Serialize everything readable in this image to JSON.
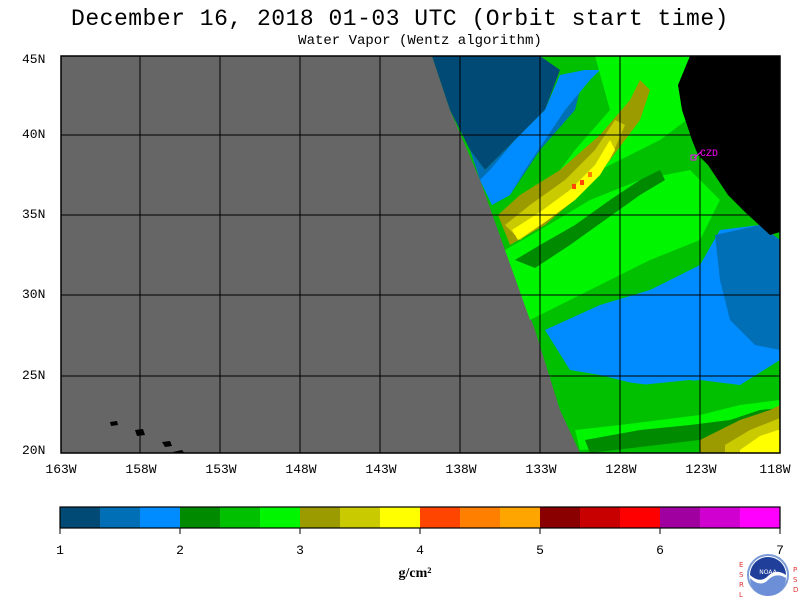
{
  "title": "December 16, 2018  01-03 UTC  (Orbit start time)",
  "subtitle": "Water Vapor (Wentz algorithm)",
  "map": {
    "lat_labels": [
      "45N",
      "40N",
      "35N",
      "30N",
      "25N",
      "20N"
    ],
    "lon_labels": [
      "163W",
      "158W",
      "153W",
      "148W",
      "143W",
      "138W",
      "133W",
      "128W",
      "123W",
      "118W"
    ],
    "station_label": "CZD",
    "no_data_color": "#666666",
    "land_color": "#000000"
  },
  "colorbar": {
    "colors": [
      "#004a75",
      "#006fb5",
      "#008cff",
      "#008a00",
      "#00c000",
      "#00f500",
      "#9b9b00",
      "#caca00",
      "#ffff00",
      "#ff4500",
      "#ff7f00",
      "#ffa500",
      "#8a0000",
      "#c80000",
      "#ff0000",
      "#a000a0",
      "#d000d0",
      "#ff00ff"
    ],
    "tick_labels": [
      "1",
      "2",
      "3",
      "4",
      "5",
      "6",
      "7"
    ],
    "unit": "g/cm²"
  },
  "logo": {
    "left_letters": [
      "E",
      "S",
      "R",
      "L"
    ],
    "right_letters": [
      "P",
      "S",
      "D"
    ],
    "center_text": "NOAA"
  }
}
